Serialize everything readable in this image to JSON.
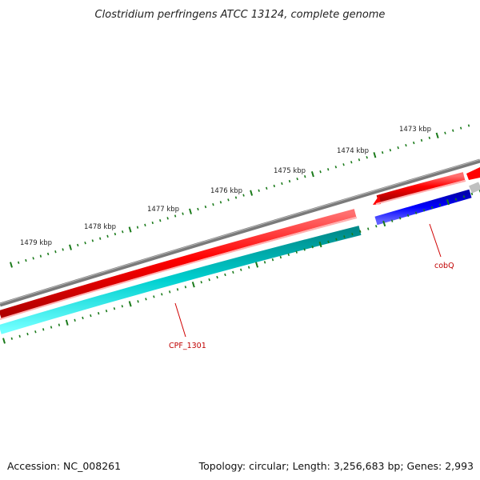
{
  "title": "Clostridium perfringens ATCC 13124, complete genome",
  "accession": "Accession: NC_008261",
  "summary": "Topology: circular; Length: 3,256,683 bp; Genes: 2,993",
  "scale_labels": [
    "1473 kbp",
    "1474 kbp",
    "1475 kbp",
    "1476 kbp",
    "1477 kbp",
    "1478 kbp",
    "1479 kbp"
  ],
  "gene_labels": [
    "cobQ",
    "CPF_1301"
  ],
  "colors": {
    "backbone": "#808080",
    "forward_gene": "#ff0000",
    "reverse_gene": "#00c8c8",
    "highlight_gene": "#0000ff",
    "ticks": "#1a7a1a",
    "label_line": "#d00000"
  }
}
